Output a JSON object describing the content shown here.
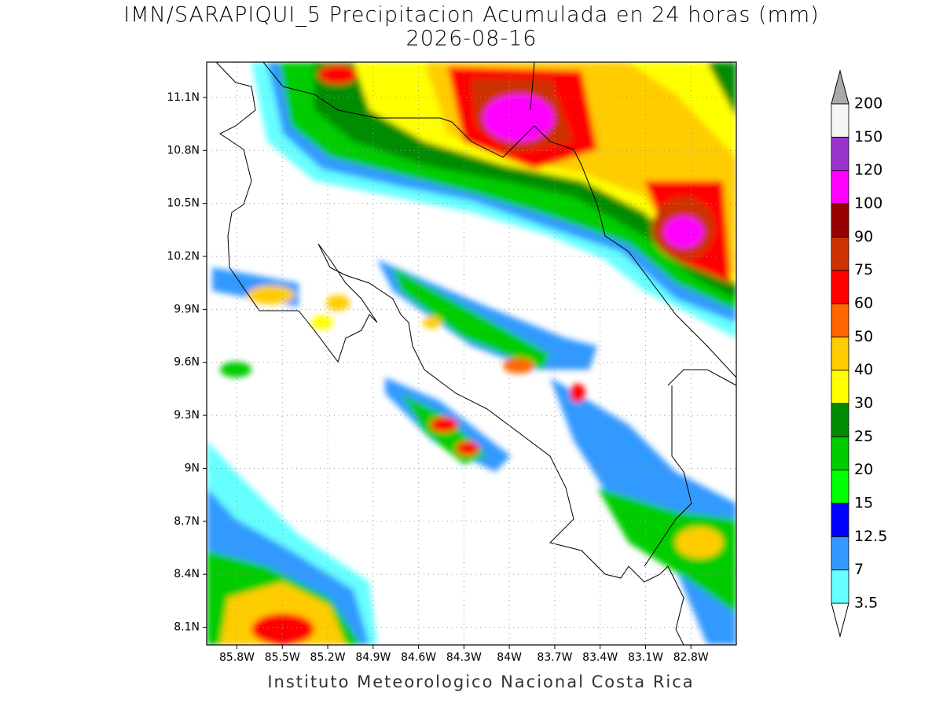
{
  "header": {
    "title": "IMN/SARAPIQUI_5 Precipitacion Acumulada en 24 horas (mm)",
    "subtitle": "2026-08-16"
  },
  "map": {
    "lonlim": [
      -86.0,
      -82.5
    ],
    "latlim": [
      8.0,
      11.3
    ],
    "grid": true,
    "lat_ticks": [
      {
        "value": 8.1,
        "label": "8.1N"
      },
      {
        "value": 8.4,
        "label": "8.4N"
      },
      {
        "value": 8.7,
        "label": "8.7N"
      },
      {
        "value": 9.0,
        "label": "9N"
      },
      {
        "value": 9.3,
        "label": "9.3N"
      },
      {
        "value": 9.6,
        "label": "9.6N"
      },
      {
        "value": 9.9,
        "label": "9.9N"
      },
      {
        "value": 10.2,
        "label": "10.2N"
      },
      {
        "value": 10.5,
        "label": "10.5N"
      },
      {
        "value": 10.8,
        "label": "10.8N"
      },
      {
        "value": 11.1,
        "label": "11.1N"
      }
    ],
    "lon_ticks": [
      {
        "value": -85.8,
        "label": "85.8W"
      },
      {
        "value": -85.5,
        "label": "85.5W"
      },
      {
        "value": -85.2,
        "label": "85.2W"
      },
      {
        "value": -84.9,
        "label": "84.9W"
      },
      {
        "value": -84.6,
        "label": "84.6W"
      },
      {
        "value": -84.3,
        "label": "84.3W"
      },
      {
        "value": -84.0,
        "label": "84W"
      },
      {
        "value": -83.7,
        "label": "83.7W"
      },
      {
        "value": -83.4,
        "label": "83.4W"
      },
      {
        "value": -83.1,
        "label": "83.1W"
      },
      {
        "value": -82.8,
        "label": "82.8W"
      }
    ]
  },
  "colorbar": {
    "levels": [
      3.5,
      7,
      12.5,
      15,
      20,
      25,
      30,
      40,
      50,
      60,
      75,
      90,
      100,
      120,
      150,
      200
    ],
    "colors": [
      "#ffffff",
      "#66ffff",
      "#3399ff",
      "#0000ff",
      "#00ff00",
      "#00cc00",
      "#008c00",
      "#ffff00",
      "#ffcc00",
      "#ff6600",
      "#ff0000",
      "#cc3300",
      "#990000",
      "#ff00ff",
      "#9933cc",
      "#f5f5f5",
      "#aaaaaa"
    ]
  },
  "footer": "Instituto Meteorologico Nacional Costa Rica"
}
